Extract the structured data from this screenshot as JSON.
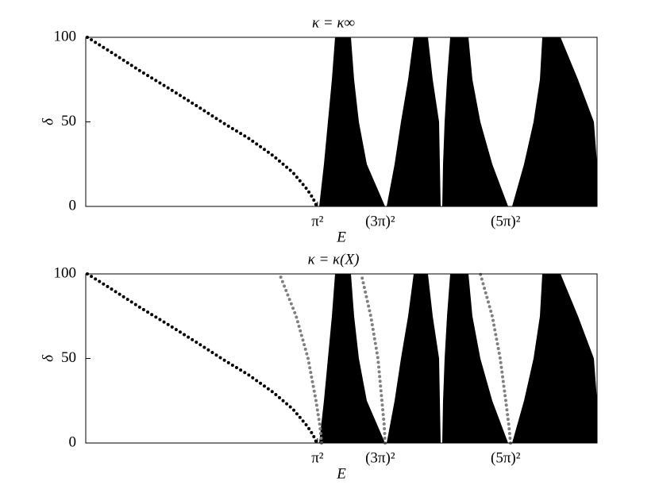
{
  "chart_data": [
    {
      "type": "band",
      "title": "κ = κ∞",
      "xlabel": "E",
      "ylabel": "δ",
      "xlim": [
        -282,
        362
      ],
      "ylim": [
        0,
        100
      ],
      "xticks": [
        {
          "value": 9.87,
          "label": "π²"
        },
        {
          "value": 88.83,
          "label": "(3π)²"
        },
        {
          "value": 246.74,
          "label": "(5π)²"
        }
      ],
      "yticks": [
        0,
        50,
        100
      ],
      "bands": {
        "color": "#000000",
        "levels": [
          0,
          25,
          50,
          75,
          100
        ],
        "edges": [
          {
            "left": [
              12,
              18,
              23,
              28,
              32
            ],
            "right": [
              95,
              72,
              62,
              56,
              52
            ]
          },
          {
            "left": [
              97,
              107,
              115,
              124,
              131
            ],
            "right": [
              165,
              164,
              163,
              155,
              149
            ]
          },
          {
            "left": [
              167,
              168,
              170,
              173,
              177
            ],
            "right": [
              250,
              230,
              215,
              205,
              200
            ]
          },
          {
            "left": [
              255,
              270,
              282,
              290,
              293
            ],
            "right": [
              362,
              362,
              358,
              338,
              316
            ]
          }
        ]
      },
      "series": [
        {
          "color": "#000000",
          "x": [
            -280,
            -246,
            -213,
            -178,
            -144,
            -111,
            -76,
            -46,
            -21,
            -3,
            4,
            9
          ],
          "y": [
            100,
            90,
            80,
            70,
            60,
            50,
            40,
            30,
            20,
            10,
            5,
            0
          ]
        }
      ]
    },
    {
      "type": "band",
      "title": "κ = κ(X)",
      "xlabel": "E",
      "ylabel": "δ",
      "xlim": [
        -282,
        362
      ],
      "ylim": [
        0,
        100
      ],
      "xticks": [
        {
          "value": 9.87,
          "label": "π²"
        },
        {
          "value": 88.83,
          "label": "(3π)²"
        },
        {
          "value": 246.74,
          "label": "(5π)²"
        }
      ],
      "yticks": [
        0,
        50,
        100
      ],
      "bands": {
        "color": "#000000",
        "levels": [
          0,
          25,
          50,
          75,
          100
        ],
        "edges": [
          {
            "left": [
              12,
              18,
              23,
              28,
              32
            ],
            "right": [
              95,
              72,
              62,
              56,
              52
            ]
          },
          {
            "left": [
              97,
              107,
              115,
              124,
              131
            ],
            "right": [
              165,
              164,
              163,
              155,
              149
            ]
          },
          {
            "left": [
              167,
              168,
              170,
              173,
              177
            ],
            "right": [
              250,
              230,
              215,
              205,
              200
            ]
          },
          {
            "left": [
              255,
              270,
              282,
              290,
              293
            ],
            "right": [
              362,
              362,
              358,
              338,
              316
            ]
          }
        ]
      },
      "series": [
        {
          "color": "#000000",
          "x": [
            -280,
            -246,
            -213,
            -178,
            -144,
            -111,
            -76,
            -46,
            -21,
            -3,
            4,
            9
          ],
          "y": [
            100,
            90,
            80,
            70,
            60,
            50,
            40,
            30,
            20,
            10,
            5,
            0
          ]
        },
        {
          "color": "#808080",
          "x": [
            15,
            13,
            8,
            -2,
            -17,
            -38
          ],
          "y": [
            0,
            10,
            25,
            50,
            75,
            100
          ]
        },
        {
          "color": "#808080",
          "x": [
            95,
            94,
            91,
            86,
            77,
            65
          ],
          "y": [
            0,
            10,
            25,
            50,
            75,
            100
          ]
        },
        {
          "color": "#808080",
          "x": [
            253,
            251,
            247,
            240,
            230,
            215
          ],
          "y": [
            0,
            10,
            25,
            50,
            75,
            100
          ]
        }
      ]
    }
  ]
}
